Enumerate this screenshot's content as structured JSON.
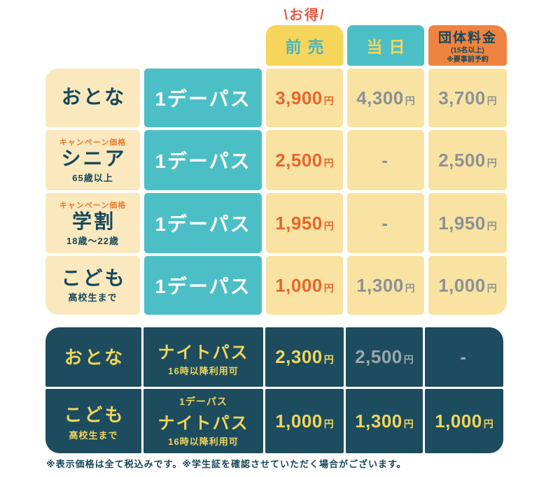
{
  "deal_badge": "\\お得/",
  "columns": {
    "presale": "前売",
    "same_day": "当日",
    "group_title": "団体料金",
    "group_sub1": "(15名以上)",
    "group_sub2": "※要事前予約"
  },
  "day_rows": [
    {
      "campaign": "",
      "category": "おとな",
      "note": "",
      "pass": "1デーパス",
      "prices": [
        {
          "value": "3,900",
          "unit": "円"
        },
        {
          "value": "4,300",
          "unit": "円"
        },
        {
          "value": "3,700",
          "unit": "円"
        }
      ]
    },
    {
      "campaign": "キャンペーン価格",
      "category": "シニア",
      "note": "65歳以上",
      "pass": "1デーパス",
      "prices": [
        {
          "value": "2,500",
          "unit": "円"
        },
        {
          "value": "-",
          "unit": ""
        },
        {
          "value": "2,500",
          "unit": "円"
        }
      ]
    },
    {
      "campaign": "キャンペーン価格",
      "category": "学割",
      "note": "18歳〜22歳",
      "pass": "1デーパス",
      "prices": [
        {
          "value": "1,950",
          "unit": "円"
        },
        {
          "value": "-",
          "unit": ""
        },
        {
          "value": "1,950",
          "unit": "円"
        }
      ]
    },
    {
      "campaign": "",
      "category": "こども",
      "note": "高校生まで",
      "pass": "1デーパス",
      "prices": [
        {
          "value": "1,000",
          "unit": "円"
        },
        {
          "value": "1,300",
          "unit": "円"
        },
        {
          "value": "1,000",
          "unit": "円"
        }
      ]
    }
  ],
  "night_rows": [
    {
      "category": "おとな",
      "note": "",
      "pass_pre": "",
      "pass": "ナイトパス",
      "pass_note": "16時以降利用可",
      "prices": [
        {
          "value": "2,300",
          "unit": "円"
        },
        {
          "value": "2,500",
          "unit": "円"
        },
        {
          "value": "-",
          "unit": ""
        }
      ]
    },
    {
      "category": "こども",
      "note": "高校生まで",
      "pass_pre": "1デーパス",
      "pass": "ナイトパス",
      "pass_note": "16時以降利用可",
      "prices": [
        {
          "value": "1,000",
          "unit": "円"
        },
        {
          "value": "1,300",
          "unit": "円"
        },
        {
          "value": "1,000",
          "unit": "円"
        }
      ]
    }
  ],
  "footer_note": "※表示価格は全て税込みです。※学生証を確認させていただく場合がございます。",
  "colors": {
    "header_yellow": "#f6d65a",
    "teal": "#4cbfc6",
    "header_orange": "#ef8440",
    "navy_text": "#17485c",
    "cream_cell": "#fae9be",
    "price_cell_yellow": "#f9e3a3",
    "highlight_orange": "#e8662a",
    "muted_gray": "#8d9196",
    "night_bg": "#1d4c5e",
    "night_yellow": "#f0d55c",
    "night_dim_gray": "#9ca7ae",
    "deal_badge_red": "#e85a43"
  }
}
